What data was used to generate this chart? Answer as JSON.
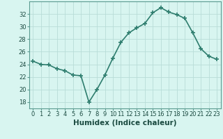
{
  "x": [
    0,
    1,
    2,
    3,
    4,
    5,
    6,
    7,
    8,
    9,
    10,
    11,
    12,
    13,
    14,
    15,
    16,
    17,
    18,
    19,
    20,
    21,
    22,
    23
  ],
  "y": [
    24.5,
    24.0,
    23.9,
    23.3,
    23.0,
    22.3,
    22.2,
    18.0,
    20.0,
    22.3,
    25.0,
    27.5,
    29.0,
    29.8,
    30.5,
    32.2,
    33.0,
    32.3,
    31.9,
    31.3,
    29.0,
    26.5,
    25.3,
    24.8
  ],
  "line_color": "#2e7d6e",
  "marker": "+",
  "marker_size": 4,
  "bg_color": "#d8f5f0",
  "grid_color": "#b8ddd8",
  "xlabel": "Humidex (Indice chaleur)",
  "ylim": [
    17,
    34
  ],
  "xlim": [
    -0.5,
    23.5
  ],
  "yticks": [
    18,
    20,
    22,
    24,
    26,
    28,
    30,
    32
  ],
  "xticks": [
    0,
    1,
    2,
    3,
    4,
    5,
    6,
    7,
    8,
    9,
    10,
    11,
    12,
    13,
    14,
    15,
    16,
    17,
    18,
    19,
    20,
    21,
    22,
    23
  ],
  "tick_fontsize": 6,
  "xlabel_fontsize": 7.5,
  "line_width": 1.2,
  "marker_color": "#2e7d6e"
}
